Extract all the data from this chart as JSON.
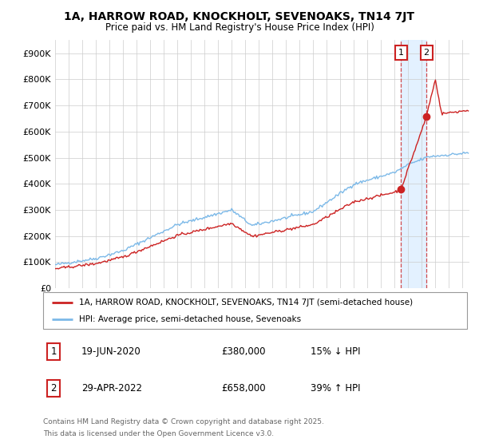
{
  "title": "1A, HARROW ROAD, KNOCKHOLT, SEVENOAKS, TN14 7JT",
  "subtitle": "Price paid vs. HM Land Registry's House Price Index (HPI)",
  "ylim": [
    0,
    950000
  ],
  "yticks": [
    0,
    100000,
    200000,
    300000,
    400000,
    500000,
    600000,
    700000,
    800000,
    900000
  ],
  "ytick_labels": [
    "£0",
    "£100K",
    "£200K",
    "£300K",
    "£400K",
    "£500K",
    "£600K",
    "£700K",
    "£800K",
    "£900K"
  ],
  "hpi_color": "#7cb9e8",
  "property_color": "#cc2222",
  "transaction1_year": 2020.46,
  "transaction1_price": 380000,
  "transaction2_year": 2022.33,
  "transaction2_price": 658000,
  "legend_property": "1A, HARROW ROAD, KNOCKHOLT, SEVENOAKS, TN14 7JT (semi-detached house)",
  "legend_hpi": "HPI: Average price, semi-detached house, Sevenoaks",
  "table_row1_date": "19-JUN-2020",
  "table_row1_price": "£380,000",
  "table_row1_hpi": "15% ↓ HPI",
  "table_row2_date": "29-APR-2022",
  "table_row2_price": "£658,000",
  "table_row2_hpi": "39% ↑ HPI",
  "footnote_line1": "Contains HM Land Registry data © Crown copyright and database right 2025.",
  "footnote_line2": "This data is licensed under the Open Government Licence v3.0.",
  "bg_color": "#ffffff",
  "grid_color": "#cccccc",
  "highlight_color": "#ddeeff"
}
